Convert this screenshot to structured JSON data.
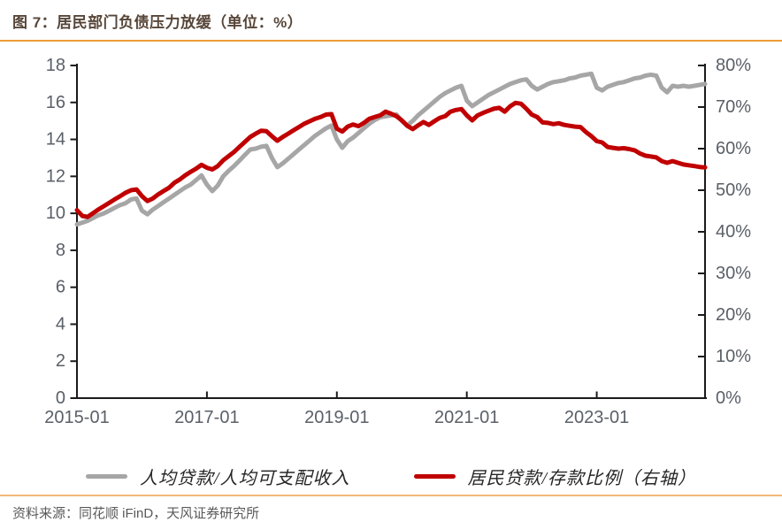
{
  "header": {
    "title": "图 7：居民部门负债压力放缓（单位：%）"
  },
  "source": {
    "label": "资料来源：同花顺 iFinD，天风证券研究所"
  },
  "legend": [
    {
      "name": "人均贷款/人均可支配收入",
      "color": "#A6A6A6"
    },
    {
      "name": "居民贷款/存款比例（右轴）",
      "color": "#C00000"
    }
  ],
  "colors": {
    "title": "#574639",
    "title_rule": "#ED9C35",
    "bottom_rule": "#F3B878",
    "axis": "#1a1a1a",
    "axis_label": "#5a6068",
    "series_gray": "#A6A6A6",
    "series_red": "#C00000"
  },
  "chart_data": {
    "type": "line",
    "title": "图 7：居民部门负债压力放缓（单位：%）",
    "xlabel": "",
    "ylabel_left": "",
    "ylabel_right": "",
    "grid": false,
    "legend_position": "bottom",
    "left_axis": {
      "min": 0,
      "max": 18,
      "ticks": [
        0,
        2,
        4,
        6,
        8,
        10,
        12,
        14,
        16,
        18
      ],
      "suffix": ""
    },
    "right_axis": {
      "min": 0,
      "max": 80,
      "ticks": [
        0,
        10,
        20,
        30,
        40,
        50,
        60,
        70,
        80
      ],
      "suffix": "%"
    },
    "x_ticks": [
      {
        "index": 0,
        "label": "2015-01"
      },
      {
        "index": 24,
        "label": "2017-01"
      },
      {
        "index": 48,
        "label": "2019-01"
      },
      {
        "index": 72,
        "label": "2021-01"
      },
      {
        "index": 96,
        "label": "2023-01"
      }
    ],
    "x": [
      "2015-01",
      "2015-02",
      "2015-03",
      "2015-04",
      "2015-05",
      "2015-06",
      "2015-07",
      "2015-08",
      "2015-09",
      "2015-10",
      "2015-11",
      "2015-12",
      "2016-01",
      "2016-02",
      "2016-03",
      "2016-04",
      "2016-05",
      "2016-06",
      "2016-07",
      "2016-08",
      "2016-09",
      "2016-10",
      "2016-11",
      "2016-12",
      "2017-01",
      "2017-02",
      "2017-03",
      "2017-04",
      "2017-05",
      "2017-06",
      "2017-07",
      "2017-08",
      "2017-09",
      "2017-10",
      "2017-11",
      "2017-12",
      "2018-01",
      "2018-02",
      "2018-03",
      "2018-04",
      "2018-05",
      "2018-06",
      "2018-07",
      "2018-08",
      "2018-09",
      "2018-10",
      "2018-11",
      "2018-12",
      "2019-01",
      "2019-02",
      "2019-03",
      "2019-04",
      "2019-05",
      "2019-06",
      "2019-07",
      "2019-08",
      "2019-09",
      "2019-10",
      "2019-11",
      "2019-12",
      "2020-01",
      "2020-02",
      "2020-03",
      "2020-04",
      "2020-05",
      "2020-06",
      "2020-07",
      "2020-08",
      "2020-09",
      "2020-10",
      "2020-11",
      "2020-12",
      "2021-01",
      "2021-02",
      "2021-03",
      "2021-04",
      "2021-05",
      "2021-06",
      "2021-07",
      "2021-08",
      "2021-09",
      "2021-10",
      "2021-11",
      "2021-12",
      "2022-01",
      "2022-02",
      "2022-03",
      "2022-04",
      "2022-05",
      "2022-06",
      "2022-07",
      "2022-08",
      "2022-09",
      "2022-10",
      "2022-11",
      "2022-12",
      "2023-01",
      "2023-02",
      "2023-03",
      "2023-04",
      "2023-05",
      "2023-06",
      "2023-07",
      "2023-08",
      "2023-09",
      "2023-10",
      "2023-11",
      "2023-12",
      "2024-01",
      "2024-02",
      "2024-03",
      "2024-04",
      "2024-05",
      "2024-06",
      "2024-07",
      "2024-08",
      "2024-09"
    ],
    "series": [
      {
        "name": "人均贷款/人均可支配收入",
        "axis": "left",
        "color": "#A6A6A6",
        "values": [
          9.4,
          9.5,
          9.6,
          9.75,
          9.9,
          10.0,
          10.15,
          10.3,
          10.45,
          10.55,
          10.75,
          10.8,
          10.15,
          9.95,
          10.2,
          10.4,
          10.6,
          10.8,
          11.0,
          11.2,
          11.4,
          11.55,
          11.8,
          12.05,
          11.55,
          11.2,
          11.5,
          12.0,
          12.3,
          12.55,
          12.85,
          13.15,
          13.45,
          13.5,
          13.6,
          13.65,
          13.0,
          12.5,
          12.7,
          12.95,
          13.2,
          13.45,
          13.7,
          13.95,
          14.2,
          14.4,
          14.6,
          14.75,
          14.0,
          13.55,
          13.9,
          14.1,
          14.35,
          14.6,
          14.85,
          15.05,
          15.2,
          15.25,
          15.3,
          15.35,
          15.0,
          14.75,
          15.0,
          15.3,
          15.55,
          15.8,
          16.05,
          16.3,
          16.5,
          16.65,
          16.8,
          16.9,
          16.1,
          15.8,
          16.0,
          16.2,
          16.4,
          16.55,
          16.7,
          16.85,
          17.0,
          17.1,
          17.2,
          17.25,
          16.9,
          16.7,
          16.85,
          17.0,
          17.1,
          17.15,
          17.2,
          17.3,
          17.35,
          17.45,
          17.5,
          17.55,
          16.8,
          16.65,
          16.85,
          16.95,
          17.05,
          17.1,
          17.2,
          17.3,
          17.35,
          17.45,
          17.5,
          17.45,
          16.8,
          16.55,
          16.9,
          16.85,
          16.9,
          16.85,
          16.9,
          16.95,
          17.0
        ]
      },
      {
        "name": "居民贷款/存款比例（右轴）",
        "axis": "right",
        "color": "#C00000",
        "values": [
          45.2,
          43.8,
          43.6,
          44.5,
          45.4,
          46.2,
          47.0,
          47.8,
          48.6,
          49.4,
          50.0,
          50.2,
          48.6,
          47.4,
          48.0,
          49.0,
          49.8,
          50.6,
          51.8,
          52.6,
          53.6,
          54.4,
          55.2,
          56.1,
          55.4,
          55.0,
          55.8,
          57.2,
          58.2,
          59.2,
          60.4,
          61.6,
          62.8,
          63.6,
          64.3,
          64.2,
          63.0,
          61.9,
          62.8,
          63.6,
          64.4,
          65.2,
          66.0,
          66.6,
          67.2,
          67.6,
          68.2,
          68.3,
          64.8,
          64.1,
          65.3,
          65.8,
          65.4,
          66.2,
          67.2,
          67.6,
          68.0,
          68.9,
          68.4,
          67.8,
          66.8,
          65.5,
          64.7,
          65.6,
          66.4,
          65.7,
          66.6,
          67.4,
          67.8,
          68.9,
          69.3,
          69.5,
          68.0,
          66.8,
          68.0,
          68.6,
          69.1,
          69.6,
          69.8,
          68.9,
          70.2,
          71.0,
          70.8,
          69.6,
          68.2,
          67.6,
          66.3,
          66.2,
          65.9,
          66.1,
          65.7,
          65.5,
          65.3,
          65.2,
          64.0,
          63.0,
          61.8,
          61.5,
          60.4,
          60.2,
          60.0,
          60.1,
          59.9,
          59.6,
          58.8,
          58.3,
          58.1,
          57.9,
          57.0,
          56.6,
          57.0,
          56.6,
          56.2,
          56.0,
          55.8,
          55.6,
          55.5
        ]
      }
    ]
  }
}
